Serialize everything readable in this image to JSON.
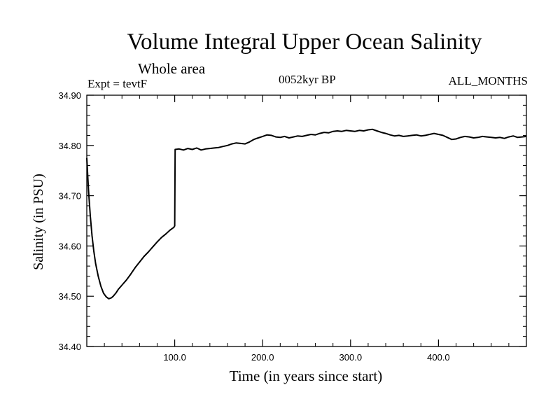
{
  "chart_data": {
    "type": "line",
    "title": "Volume Integral Upper Ocean Salinity",
    "subtitle": "Whole area",
    "annotations": {
      "left": "Expt = tevtF",
      "center": "0052kyr BP",
      "right": "ALL_MONTHS"
    },
    "xlabel": "Time (in years since start)",
    "ylabel": "Salinity (in PSU)",
    "xlim": [
      0,
      500
    ],
    "ylim": [
      34.4,
      34.9
    ],
    "xticks": [
      100,
      200,
      300,
      400
    ],
    "xtick_labels": [
      "100.0",
      "200.0",
      "300.0",
      "400.0"
    ],
    "yticks": [
      34.4,
      34.5,
      34.6,
      34.7,
      34.8,
      34.9
    ],
    "ytick_labels": [
      "34.40",
      "34.50",
      "34.60",
      "34.70",
      "34.80",
      "34.90"
    ],
    "grid": false,
    "series": [
      {
        "color": "#000000",
        "x": [
          0,
          2,
          4,
          6,
          8,
          10,
          13,
          16,
          19,
          22,
          25,
          28,
          30,
          33,
          36,
          40,
          45,
          50,
          55,
          60,
          65,
          70,
          75,
          80,
          85,
          90,
          95,
          99,
          100,
          100.5,
          105,
          110,
          115,
          120,
          125,
          130,
          135,
          140,
          145,
          150,
          155,
          160,
          165,
          170,
          175,
          180,
          185,
          190,
          195,
          200,
          205,
          210,
          215,
          220,
          225,
          230,
          235,
          240,
          245,
          250,
          255,
          260,
          265,
          270,
          275,
          280,
          285,
          290,
          295,
          300,
          305,
          310,
          315,
          320,
          325,
          330,
          335,
          340,
          345,
          350,
          355,
          360,
          365,
          370,
          375,
          380,
          385,
          390,
          395,
          400,
          405,
          410,
          415,
          420,
          425,
          430,
          435,
          440,
          445,
          450,
          455,
          460,
          465,
          470,
          475,
          480,
          485,
          490,
          495,
          500
        ],
        "y": [
          34.775,
          34.71,
          34.66,
          34.62,
          34.59,
          34.565,
          34.54,
          34.52,
          34.506,
          34.499,
          34.495,
          34.497,
          34.5,
          34.506,
          34.514,
          34.522,
          34.532,
          34.544,
          34.557,
          34.568,
          34.579,
          34.588,
          34.598,
          34.608,
          34.617,
          34.624,
          34.632,
          34.637,
          34.64,
          34.792,
          34.793,
          34.791,
          34.794,
          34.792,
          34.795,
          34.791,
          34.793,
          34.794,
          34.795,
          34.796,
          34.798,
          34.8,
          34.803,
          34.805,
          34.804,
          34.803,
          34.807,
          34.812,
          34.815,
          34.818,
          34.821,
          34.82,
          34.817,
          34.816,
          34.818,
          34.815,
          34.817,
          34.819,
          34.818,
          34.82,
          34.822,
          34.821,
          34.824,
          34.826,
          34.825,
          34.828,
          34.829,
          34.828,
          34.83,
          34.829,
          34.828,
          34.83,
          34.829,
          34.831,
          34.832,
          34.829,
          34.826,
          34.824,
          34.821,
          34.819,
          34.82,
          34.818,
          34.819,
          34.82,
          34.821,
          34.819,
          34.82,
          34.822,
          34.824,
          34.822,
          34.82,
          34.816,
          34.812,
          34.813,
          34.816,
          34.818,
          34.817,
          34.815,
          34.816,
          34.818,
          34.817,
          34.816,
          34.815,
          34.816,
          34.814,
          34.817,
          34.819,
          34.816,
          34.817,
          34.818
        ]
      }
    ]
  }
}
